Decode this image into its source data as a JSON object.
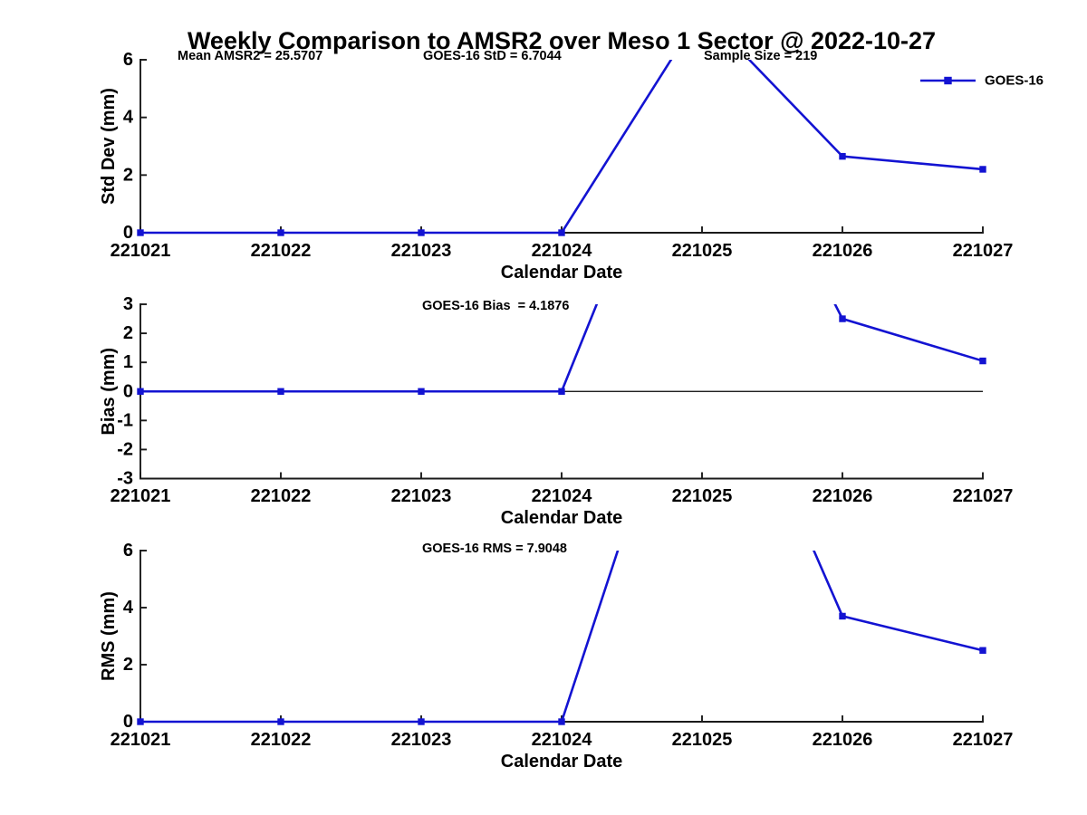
{
  "title": "Weekly Comparison to AMSR2 over Meso 1 Sector @ 2022-10-27",
  "legend": {
    "label": "GOES-16",
    "position": "top-right"
  },
  "colors": {
    "line": "#1313d2",
    "axis": "#1a1a1a",
    "text": "#000000",
    "zero_line": "#000000",
    "background": "#ffffff"
  },
  "x_axis": {
    "label": "Calendar Date",
    "categories": [
      "221021",
      "221022",
      "221023",
      "221024",
      "221025",
      "221026",
      "221027"
    ]
  },
  "chart_data": [
    {
      "type": "line",
      "title": "",
      "ylabel": "Std Dev (mm)",
      "xlabel": "Calendar Date",
      "ylim": [
        0,
        6
      ],
      "yticks": [
        0,
        2,
        4,
        6
      ],
      "grid": false,
      "legend_position": "top-right",
      "categories": [
        "221021",
        "221022",
        "221023",
        "221024",
        "221025",
        "221026",
        "221027"
      ],
      "series": [
        {
          "name": "GOES-16",
          "marker": "square",
          "values": [
            0,
            0,
            0,
            0,
            7.7,
            2.65,
            2.2
          ]
        }
      ],
      "annotations": [
        "Mean AMSR2 = 25.5707",
        "GOES-16 StD = 6.7044",
        "Sample Size = 219"
      ]
    },
    {
      "type": "line",
      "title": "",
      "ylabel": "Bias (mm)",
      "xlabel": "Calendar Date",
      "ylim": [
        -3,
        3
      ],
      "yticks": [
        -3,
        -2,
        -1,
        0,
        1,
        2,
        3
      ],
      "grid": false,
      "zero_line": true,
      "categories": [
        "221021",
        "221022",
        "221023",
        "221024",
        "221025",
        "221026",
        "221027"
      ],
      "series": [
        {
          "name": "GOES-16",
          "marker": "square",
          "values": [
            0,
            0,
            0,
            0,
            12,
            2.5,
            1.05
          ]
        }
      ],
      "annotations": [
        "GOES-16 Bias  = 4.1876"
      ]
    },
    {
      "type": "line",
      "title": "",
      "ylabel": "RMS (mm)",
      "xlabel": "Calendar Date",
      "ylim": [
        0,
        6
      ],
      "yticks": [
        0,
        2,
        4,
        6
      ],
      "grid": false,
      "categories": [
        "221021",
        "221022",
        "221023",
        "221024",
        "221025",
        "221026",
        "221027"
      ],
      "series": [
        {
          "name": "GOES-16",
          "marker": "square",
          "values": [
            0,
            0,
            0,
            0,
            15,
            3.7,
            2.5
          ]
        }
      ],
      "annotations": [
        "GOES-16 RMS = 7.9048"
      ]
    }
  ]
}
